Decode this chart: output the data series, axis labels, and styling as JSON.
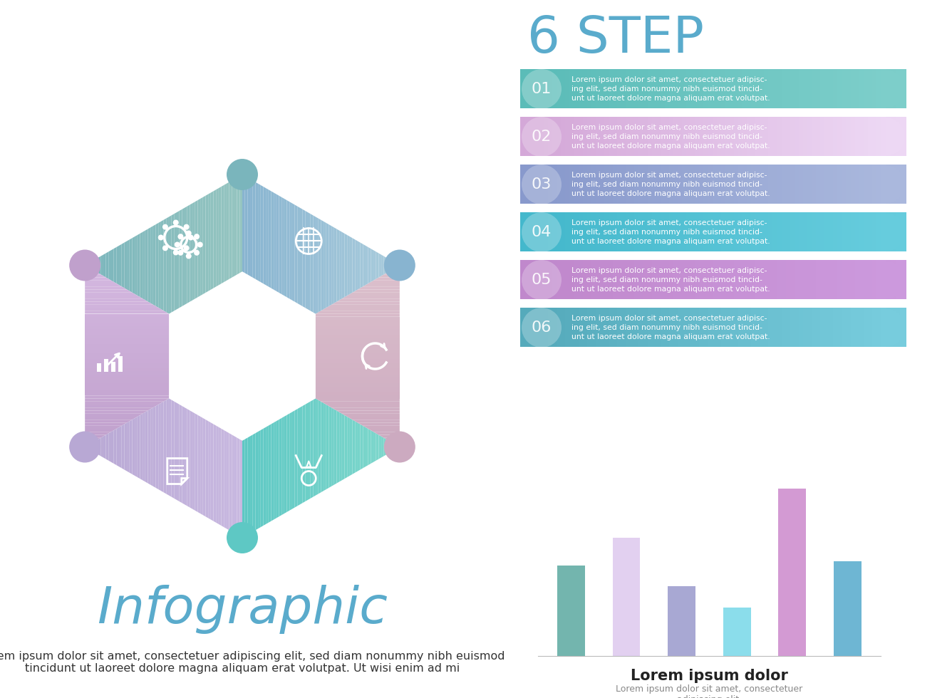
{
  "title_6step": "6 STEP",
  "title_6step_color": "#5aabcc",
  "steps": [
    {
      "num": "01",
      "c_left": "#5bbcb8",
      "c_right": "#7dceca"
    },
    {
      "num": "02",
      "c_left": "#d4a8d8",
      "c_right": "#edd8f4"
    },
    {
      "num": "03",
      "c_left": "#8899cc",
      "c_right": "#aab8dd"
    },
    {
      "num": "04",
      "c_left": "#44b8cc",
      "c_right": "#66ccdd"
    },
    {
      "num": "05",
      "c_left": "#c088cc",
      "c_right": "#cc99dd"
    },
    {
      "num": "06",
      "c_left": "#55aabb",
      "c_right": "#77ccdd"
    }
  ],
  "step_text": "Lorem ipsum dolor sit amet, consectetuer adipisc-\ning elit, sed diam nonummy nibh euismod tincid-\nunt ut laoreet dolore magna aliquam erat volutpat.",
  "bar_values": [
    6.5,
    8.5,
    5.0,
    3.5,
    12.0,
    6.8
  ],
  "bar_colors": [
    "#5ba8a0",
    "#ddc8ee",
    "#9999cc",
    "#77d8e8",
    "#cc88cc",
    "#55aacc"
  ],
  "chart_title": "Lorem ipsum dolor",
  "chart_subtitle": "Lorem ipsum dolor sit amet, consectetuer\nadipiscing elit,",
  "main_title": "Infographic",
  "main_title_color": "#5aabcc",
  "footer_text": "Lorem ipsum dolor sit amet, consectetuer adipiscing elit, sed diam nonummy nibh euismod\ntincidunt ut laoreet dolore magna aliquam erat volutpat. Ut wisi enim ad mi",
  "background_color": "#ffffff"
}
